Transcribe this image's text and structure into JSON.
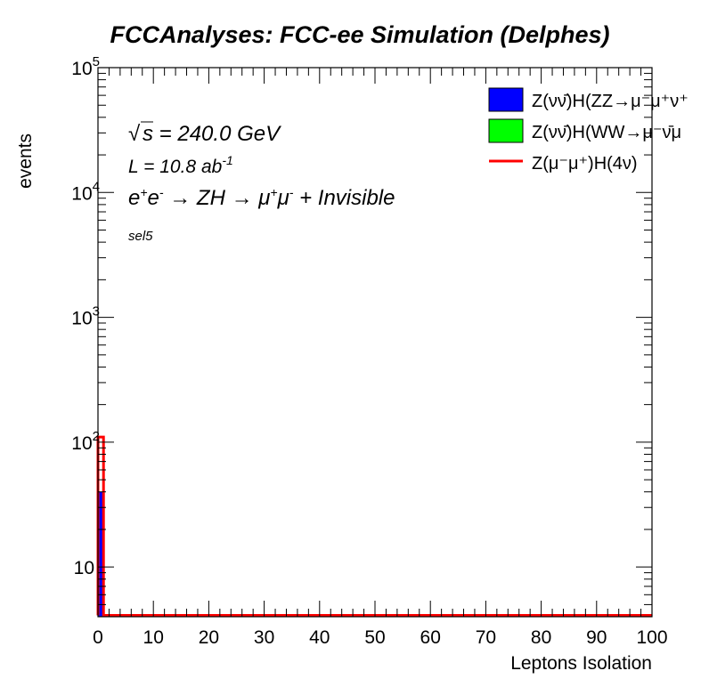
{
  "chart_data": {
    "type": "bar",
    "title": "FCCAnalyses: FCC-ee Simulation (Delphes)",
    "xlabel": "Leptons Isolation",
    "ylabel": "events",
    "xlim": [
      0,
      100
    ],
    "ylim": [
      4,
      100000
    ],
    "yscale": "log",
    "grid": false,
    "legend_position": "top-right",
    "x_ticks": [
      "0",
      "10",
      "20",
      "30",
      "40",
      "50",
      "60",
      "70",
      "80",
      "90",
      "100"
    ],
    "y_ticks": [
      {
        "value": 10,
        "label": "10"
      },
      {
        "value": 100,
        "base": "10",
        "exp": "2"
      },
      {
        "value": 1000,
        "base": "10",
        "exp": "3"
      },
      {
        "value": 10000,
        "base": "10",
        "exp": "4"
      },
      {
        "value": 100000,
        "base": "10",
        "exp": "5"
      }
    ],
    "annotations": {
      "energy_prefix": "√",
      "energy_var": "s",
      "energy": " = 240.0 GeV",
      "lumi": "L = 10.8 ab",
      "lumi_exp": "-1",
      "process_e": "e",
      "process_ep": "+",
      "process_e2": "e",
      "process_em": "-",
      "process_arrow1": " → ZH ",
      "process_arrow2": "→ μ",
      "process_mup": "+",
      "process_mu2": "μ",
      "process_mum": "-",
      "process_tail": " + Invisible",
      "selection": "sel5"
    },
    "series": [
      {
        "name": "Z(νν̄)H(ZZ→μ⁻μ⁺ν⁺",
        "style": "filled",
        "color": "#0000ff",
        "bins": [
          [
            0,
            1,
            40
          ]
        ]
      },
      {
        "name": "Z(νν̄)H(WW→μ⁻ν̄μ",
        "style": "filled",
        "color": "#00ff00",
        "bins": [
          [
            0,
            1,
            0
          ]
        ]
      },
      {
        "name": "Z(μ⁻μ⁺)H(4ν)",
        "style": "line",
        "color": "#ff0000",
        "bins": [
          [
            0,
            1,
            110
          ]
        ]
      }
    ]
  }
}
